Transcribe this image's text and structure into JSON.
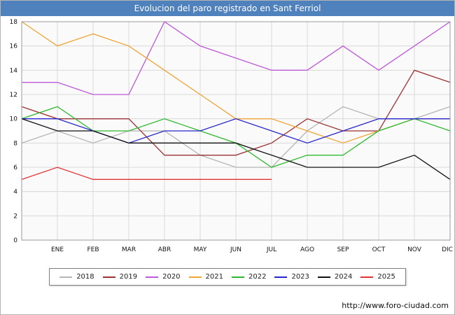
{
  "header": {
    "title": "Evolucion del paro registrado en Sant Ferriol"
  },
  "footer": {
    "url": "http://www.foro-ciudad.com"
  },
  "colors": {
    "header_bg": "#4f81bd",
    "plot_bg": "#fafafa",
    "grid": "#d9d9d9",
    "plot_border": "#9a9a9a",
    "axis_text": "#111111"
  },
  "chart_data": {
    "type": "line",
    "title": "Evolucion del paro registrado en Sant Ferriol",
    "categories": [
      "ENE",
      "FEB",
      "MAR",
      "ABR",
      "MAY",
      "JUN",
      "JUL",
      "AGO",
      "SEP",
      "OCT",
      "NOV",
      "DIC"
    ],
    "x_layout_note": "Each series has 13 points: the first point sits on the left axis edge (unlabeled), the remaining 12 align with the month ticks ENE-DIC. The 2025 series is partial and ends at JUL.",
    "ylim": [
      0,
      18
    ],
    "ytick_step": 2,
    "grid": true,
    "legend_position": "bottom",
    "series": [
      {
        "name": "2018",
        "color": "#b5b5b5",
        "values": [
          8,
          9,
          8,
          9,
          9,
          7,
          6,
          6,
          9,
          11,
          10,
          10,
          11
        ]
      },
      {
        "name": "2019",
        "color": "#993333",
        "values": [
          11,
          10,
          10,
          10,
          7,
          7,
          7,
          8,
          10,
          9,
          9,
          14,
          13
        ]
      },
      {
        "name": "2020",
        "color": "#bd58d8",
        "values": [
          13,
          13,
          12,
          12,
          18,
          16,
          15,
          14,
          14,
          16,
          14,
          16,
          18
        ]
      },
      {
        "name": "2021",
        "color": "#efa433",
        "values": [
          18,
          16,
          17,
          16,
          14,
          12,
          10,
          10,
          9,
          8,
          9,
          10,
          10
        ]
      },
      {
        "name": "2022",
        "color": "#2eb82e",
        "values": [
          10,
          11,
          9,
          9,
          10,
          9,
          8,
          6,
          7,
          7,
          9,
          10,
          9
        ]
      },
      {
        "name": "2023",
        "color": "#2626cc",
        "values": [
          10,
          10,
          9,
          8,
          9,
          9,
          10,
          9,
          8,
          9,
          10,
          10,
          10
        ]
      },
      {
        "name": "2024",
        "color": "#111111",
        "values": [
          10,
          9,
          9,
          8,
          8,
          8,
          8,
          7,
          6,
          6,
          6,
          7,
          5
        ]
      },
      {
        "name": "2025",
        "color": "#e03333",
        "values": [
          5,
          6,
          5,
          5,
          5,
          5,
          5,
          5
        ]
      }
    ]
  }
}
